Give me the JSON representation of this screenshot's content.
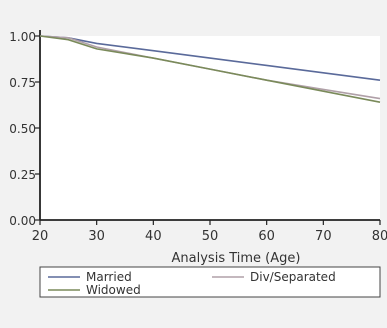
{
  "chart_data": {
    "type": "line",
    "title": "",
    "xlabel": "Analysis Time (Age)",
    "ylabel": "",
    "xlim": [
      20,
      80
    ],
    "ylim": [
      0,
      1
    ],
    "x_ticks": [
      "20",
      "30",
      "40",
      "50",
      "60",
      "70",
      "80"
    ],
    "y_ticks": [
      "0.00",
      "0.25",
      "0.50",
      "0.75",
      "1.00"
    ],
    "grid": false,
    "legend_position": "bottom",
    "series": [
      {
        "name": "Married",
        "color": "#5a6a9a",
        "x": [
          20,
          25,
          30,
          40,
          50,
          60,
          70,
          80
        ],
        "y": [
          1.0,
          0.99,
          0.96,
          0.92,
          0.88,
          0.84,
          0.8,
          0.76
        ]
      },
      {
        "name": "Div/Separated",
        "color": "#b0a0a8",
        "x": [
          20,
          25,
          30,
          40,
          50,
          60,
          70,
          80
        ],
        "y": [
          1.0,
          0.99,
          0.94,
          0.88,
          0.82,
          0.76,
          0.71,
          0.66
        ]
      },
      {
        "name": "Widowed",
        "color": "#7a8a5a",
        "x": [
          20,
          25,
          30,
          40,
          50,
          60,
          70,
          80
        ],
        "y": [
          1.0,
          0.98,
          0.93,
          0.88,
          0.82,
          0.76,
          0.7,
          0.64
        ]
      }
    ]
  }
}
